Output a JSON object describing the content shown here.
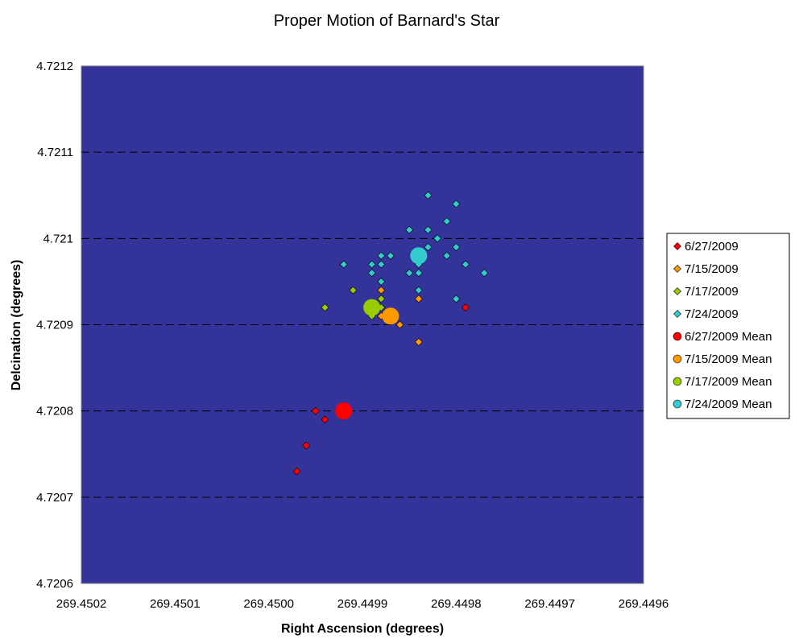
{
  "chart_data": {
    "type": "scatter",
    "title": "Proper Motion of Barnard's Star",
    "xlabel": "Right Ascension (degrees)",
    "ylabel": "Delcination (degrees)",
    "xlim": [
      269.4502,
      269.4496
    ],
    "x_reversed": true,
    "ylim": [
      4.7206,
      4.7212
    ],
    "x_ticks": [
      "269.4502",
      "269.4501",
      "269.4500",
      "269.4499",
      "269.4498",
      "269.4497",
      "269.4496"
    ],
    "y_ticks": [
      "4.7206",
      "4.7207",
      "4.7208",
      "4.7209",
      "4.721",
      "4.7211",
      "4.7212"
    ],
    "grid": "horizontal dashed",
    "plot_background": "#333399",
    "legend_position": "right",
    "series": [
      {
        "name": "6/27/2009",
        "marker": "diamond",
        "color": "#ff0000",
        "points": [
          [
            269.44995,
            4.7208
          ],
          [
            269.44994,
            4.72079
          ],
          [
            269.44996,
            4.72076
          ],
          [
            269.44997,
            4.72073
          ],
          [
            269.44979,
            4.72092
          ]
        ]
      },
      {
        "name": "7/15/2009",
        "marker": "diamond",
        "color": "#ff9900",
        "points": [
          [
            269.44988,
            4.72094
          ],
          [
            269.44988,
            4.72091
          ],
          [
            269.44987,
            4.72091
          ],
          [
            269.44984,
            4.72093
          ],
          [
            269.44984,
            4.72088
          ],
          [
            269.44986,
            4.7209
          ]
        ]
      },
      {
        "name": "7/17/2009",
        "marker": "diamond",
        "color": "#99cc00",
        "points": [
          [
            269.44991,
            4.72094
          ],
          [
            269.44988,
            4.72093
          ],
          [
            269.44994,
            4.72092
          ],
          [
            269.44988,
            4.72092
          ],
          [
            269.44989,
            4.72091
          ],
          [
            269.44987,
            4.72091
          ]
        ]
      },
      {
        "name": "7/24/2009",
        "marker": "diamond",
        "color": "#33cccc",
        "points": [
          [
            269.44983,
            4.72105
          ],
          [
            269.4498,
            4.72104
          ],
          [
            269.44981,
            4.72102
          ],
          [
            269.44983,
            4.72101
          ],
          [
            269.44982,
            4.721
          ],
          [
            269.44985,
            4.72101
          ],
          [
            269.44983,
            4.72099
          ],
          [
            269.4498,
            4.72099
          ],
          [
            269.44981,
            4.72098
          ],
          [
            269.44979,
            4.72097
          ],
          [
            269.44977,
            4.72096
          ],
          [
            269.44989,
            4.72097
          ],
          [
            269.44988,
            4.72098
          ],
          [
            269.44987,
            4.72098
          ],
          [
            269.44988,
            4.72097
          ],
          [
            269.44989,
            4.72096
          ],
          [
            269.44988,
            4.72095
          ],
          [
            269.44988,
            4.72095
          ],
          [
            269.44985,
            4.72096
          ],
          [
            269.44984,
            4.72097
          ],
          [
            269.44984,
            4.72096
          ],
          [
            269.44984,
            4.72094
          ],
          [
            269.4498,
            4.72093
          ],
          [
            269.44992,
            4.72097
          ]
        ]
      },
      {
        "name": "6/27/2009 Mean",
        "marker": "circle",
        "color": "#ff0000",
        "points": [
          [
            269.44992,
            4.7208
          ]
        ]
      },
      {
        "name": "7/15/2009 Mean",
        "marker": "circle",
        "color": "#ff9900",
        "points": [
          [
            269.44987,
            4.72091
          ]
        ]
      },
      {
        "name": "7/17/2009 Mean",
        "marker": "circle",
        "color": "#99cc00",
        "points": [
          [
            269.44989,
            4.72092
          ]
        ]
      },
      {
        "name": "7/24/2009 Mean",
        "marker": "circle",
        "color": "#33cccc",
        "points": [
          [
            269.44984,
            4.72098
          ]
        ]
      }
    ]
  }
}
